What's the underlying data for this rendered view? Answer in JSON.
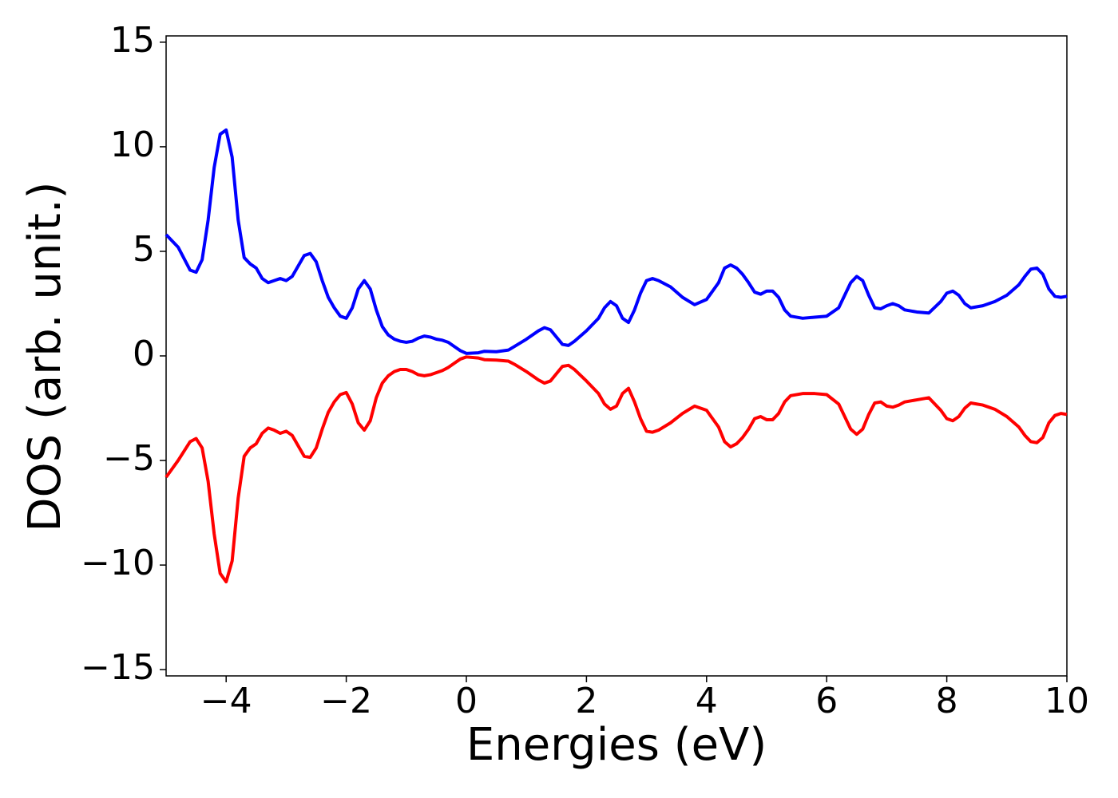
{
  "chart_data": {
    "type": "line",
    "x_label": "Energies (eV)",
    "y_label": "DOS (arb. unit.)",
    "xlim": [
      -5,
      10
    ],
    "ylim": [
      -15.3,
      15.3
    ],
    "xticks": [
      {
        "value": -4,
        "label": "−4"
      },
      {
        "value": -2,
        "label": "−2"
      },
      0,
      2,
      4,
      6,
      8,
      10
    ],
    "yticks": [
      {
        "value": -15,
        "label": "−15"
      },
      {
        "value": -10,
        "label": "−10"
      },
      {
        "value": -5,
        "label": "−5"
      },
      0,
      5,
      10,
      15
    ],
    "grid": false,
    "x": [
      -5,
      -4.8,
      -4.6,
      -4.5,
      -4.4,
      -4.3,
      -4.2,
      -4.1,
      -4.0,
      -3.9,
      -3.8,
      -3.7,
      -3.6,
      -3.5,
      -3.4,
      -3.3,
      -3.2,
      -3.1,
      -3.0,
      -2.9,
      -2.8,
      -2.7,
      -2.6,
      -2.5,
      -2.4,
      -2.3,
      -2.2,
      -2.1,
      -2.0,
      -1.9,
      -1.8,
      -1.7,
      -1.6,
      -1.5,
      -1.4,
      -1.3,
      -1.2,
      -1.1,
      -1.0,
      -0.9,
      -0.8,
      -0.7,
      -0.6,
      -0.5,
      -0.4,
      -0.3,
      -0.2,
      -0.1,
      0,
      0.2,
      0.3,
      0.5,
      0.7,
      0.8,
      1.0,
      1.2,
      1.3,
      1.4,
      1.5,
      1.6,
      1.7,
      1.8,
      2.0,
      2.2,
      2.3,
      2.4,
      2.5,
      2.6,
      2.7,
      2.8,
      2.9,
      3.0,
      3.1,
      3.2,
      3.4,
      3.6,
      3.8,
      4.0,
      4.2,
      4.3,
      4.4,
      4.5,
      4.6,
      4.7,
      4.8,
      4.9,
      5.0,
      5.1,
      5.2,
      5.3,
      5.4,
      5.6,
      5.8,
      6.0,
      6.2,
      6.3,
      6.4,
      6.5,
      6.6,
      6.7,
      6.8,
      6.9,
      7.0,
      7.1,
      7.2,
      7.3,
      7.5,
      7.7,
      7.9,
      8.0,
      8.1,
      8.2,
      8.3,
      8.4,
      8.6,
      8.8,
      9.0,
      9.2,
      9.3,
      9.4,
      9.5,
      9.6,
      9.7,
      9.8,
      9.9,
      10
    ],
    "series": [
      {
        "color": "#0000ff",
        "values": [
          5.8,
          5.2,
          4.1,
          4.0,
          4.6,
          6.5,
          9.0,
          10.6,
          10.8,
          9.5,
          6.5,
          4.7,
          4.4,
          4.2,
          3.7,
          3.5,
          3.6,
          3.7,
          3.6,
          3.8,
          4.3,
          4.8,
          4.9,
          4.5,
          3.6,
          2.8,
          2.3,
          1.9,
          1.8,
          2.3,
          3.2,
          3.6,
          3.2,
          2.2,
          1.4,
          1.0,
          0.8,
          0.7,
          0.65,
          0.7,
          0.85,
          0.95,
          0.9,
          0.8,
          0.75,
          0.65,
          0.45,
          0.25,
          0.12,
          0.15,
          0.22,
          0.2,
          0.28,
          0.45,
          0.8,
          1.2,
          1.35,
          1.25,
          0.9,
          0.55,
          0.5,
          0.7,
          1.2,
          1.8,
          2.3,
          2.6,
          2.4,
          1.8,
          1.6,
          2.2,
          3.0,
          3.6,
          3.7,
          3.6,
          3.3,
          2.8,
          2.45,
          2.7,
          3.5,
          4.2,
          4.35,
          4.2,
          3.9,
          3.5,
          3.05,
          2.95,
          3.1,
          3.1,
          2.8,
          2.2,
          1.9,
          1.8,
          1.85,
          1.9,
          2.3,
          2.9,
          3.5,
          3.8,
          3.6,
          2.9,
          2.3,
          2.25,
          2.4,
          2.5,
          2.4,
          2.2,
          2.1,
          2.05,
          2.6,
          3.0,
          3.1,
          2.9,
          2.5,
          2.3,
          2.4,
          2.6,
          2.9,
          3.4,
          3.8,
          4.15,
          4.2,
          3.9,
          3.2,
          2.85,
          2.8,
          2.85
        ]
      },
      {
        "color": "#ff0000",
        "values": [
          -5.8,
          -5.0,
          -4.1,
          -3.95,
          -4.4,
          -6.0,
          -8.5,
          -10.4,
          -10.8,
          -9.8,
          -6.8,
          -4.8,
          -4.4,
          -4.2,
          -3.7,
          -3.45,
          -3.55,
          -3.7,
          -3.6,
          -3.8,
          -4.3,
          -4.8,
          -4.85,
          -4.4,
          -3.5,
          -2.7,
          -2.2,
          -1.85,
          -1.75,
          -2.3,
          -3.2,
          -3.55,
          -3.1,
          -2.0,
          -1.3,
          -0.95,
          -0.75,
          -0.65,
          -0.65,
          -0.75,
          -0.9,
          -0.95,
          -0.9,
          -0.8,
          -0.7,
          -0.55,
          -0.35,
          -0.15,
          -0.05,
          -0.1,
          -0.18,
          -0.2,
          -0.25,
          -0.4,
          -0.75,
          -1.15,
          -1.3,
          -1.2,
          -0.85,
          -0.5,
          -0.45,
          -0.65,
          -1.2,
          -1.8,
          -2.3,
          -2.55,
          -2.4,
          -1.8,
          -1.55,
          -2.2,
          -3.0,
          -3.6,
          -3.65,
          -3.55,
          -3.2,
          -2.75,
          -2.4,
          -2.6,
          -3.4,
          -4.1,
          -4.35,
          -4.2,
          -3.9,
          -3.5,
          -3.0,
          -2.9,
          -3.05,
          -3.05,
          -2.75,
          -2.2,
          -1.9,
          -1.8,
          -1.8,
          -1.85,
          -2.3,
          -2.9,
          -3.5,
          -3.75,
          -3.5,
          -2.8,
          -2.25,
          -2.2,
          -2.4,
          -2.45,
          -2.35,
          -2.2,
          -2.1,
          -2.0,
          -2.6,
          -3.0,
          -3.1,
          -2.9,
          -2.5,
          -2.25,
          -2.35,
          -2.55,
          -2.9,
          -3.4,
          -3.8,
          -4.1,
          -4.15,
          -3.9,
          -3.2,
          -2.85,
          -2.75,
          -2.8
        ]
      }
    ]
  }
}
